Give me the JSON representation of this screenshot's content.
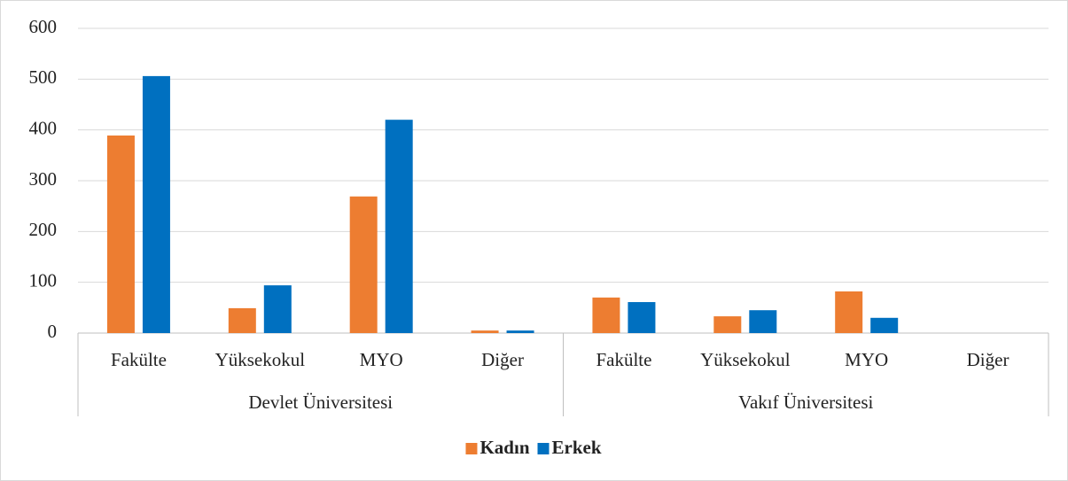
{
  "chart_data": {
    "type": "bar",
    "groups": [
      {
        "name": "Devlet Üniversitesi",
        "categories": [
          "Fakülte",
          "Yüksekokul",
          "MYO",
          "Diğer"
        ]
      },
      {
        "name": "Vakıf Üniversitesi",
        "categories": [
          "Fakülte",
          "Yüksekokul",
          "MYO",
          "Diğer"
        ]
      }
    ],
    "series": [
      {
        "name": "Kadın",
        "color": "#ed7d31",
        "values": [
          389,
          49,
          269,
          5,
          70,
          33,
          82,
          0
        ]
      },
      {
        "name": "Erkek",
        "color": "#0070c0",
        "values": [
          506,
          94,
          420,
          5,
          61,
          45,
          30,
          0
        ]
      }
    ],
    "ylim": [
      0,
      600
    ],
    "yticks": [
      0,
      100,
      200,
      300,
      400,
      500,
      600
    ],
    "grid": true,
    "legend": "bottom"
  }
}
